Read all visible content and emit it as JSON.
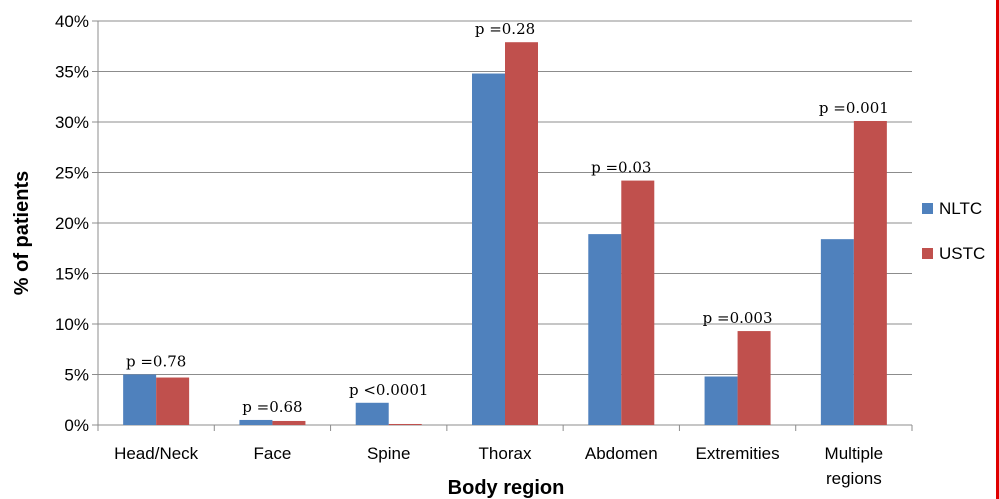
{
  "chart_data": {
    "type": "bar",
    "title": "",
    "xlabel": "Body region",
    "ylabel": "% of patients",
    "ylim": [
      0,
      40
    ],
    "yticks": [
      "0%",
      "5%",
      "10%",
      "15%",
      "20%",
      "25%",
      "30%",
      "35%",
      "40%"
    ],
    "ytick_values": [
      0,
      5,
      10,
      15,
      20,
      25,
      30,
      35,
      40
    ],
    "grid": true,
    "legend_position": "right",
    "categories": [
      [
        "Head/Neck"
      ],
      [
        "Face"
      ],
      [
        "Spine"
      ],
      [
        "Thorax"
      ],
      [
        "Abdomen"
      ],
      [
        "Extremities"
      ],
      [
        "Multiple",
        "regions"
      ]
    ],
    "series": [
      {
        "name": "NLTC",
        "color": "#4F81BD",
        "values": [
          5.0,
          0.5,
          2.2,
          34.8,
          18.9,
          4.8,
          18.4
        ]
      },
      {
        "name": "USTC",
        "color": "#C0504D",
        "values": [
          4.7,
          0.4,
          0.1,
          37.9,
          24.2,
          9.3,
          30.1
        ]
      }
    ],
    "annotations": [
      "p =0.78",
      "p =0.68",
      "p <0.0001",
      "p =0.28",
      "p =0.03",
      "p =0.003",
      "p =0.001"
    ]
  }
}
